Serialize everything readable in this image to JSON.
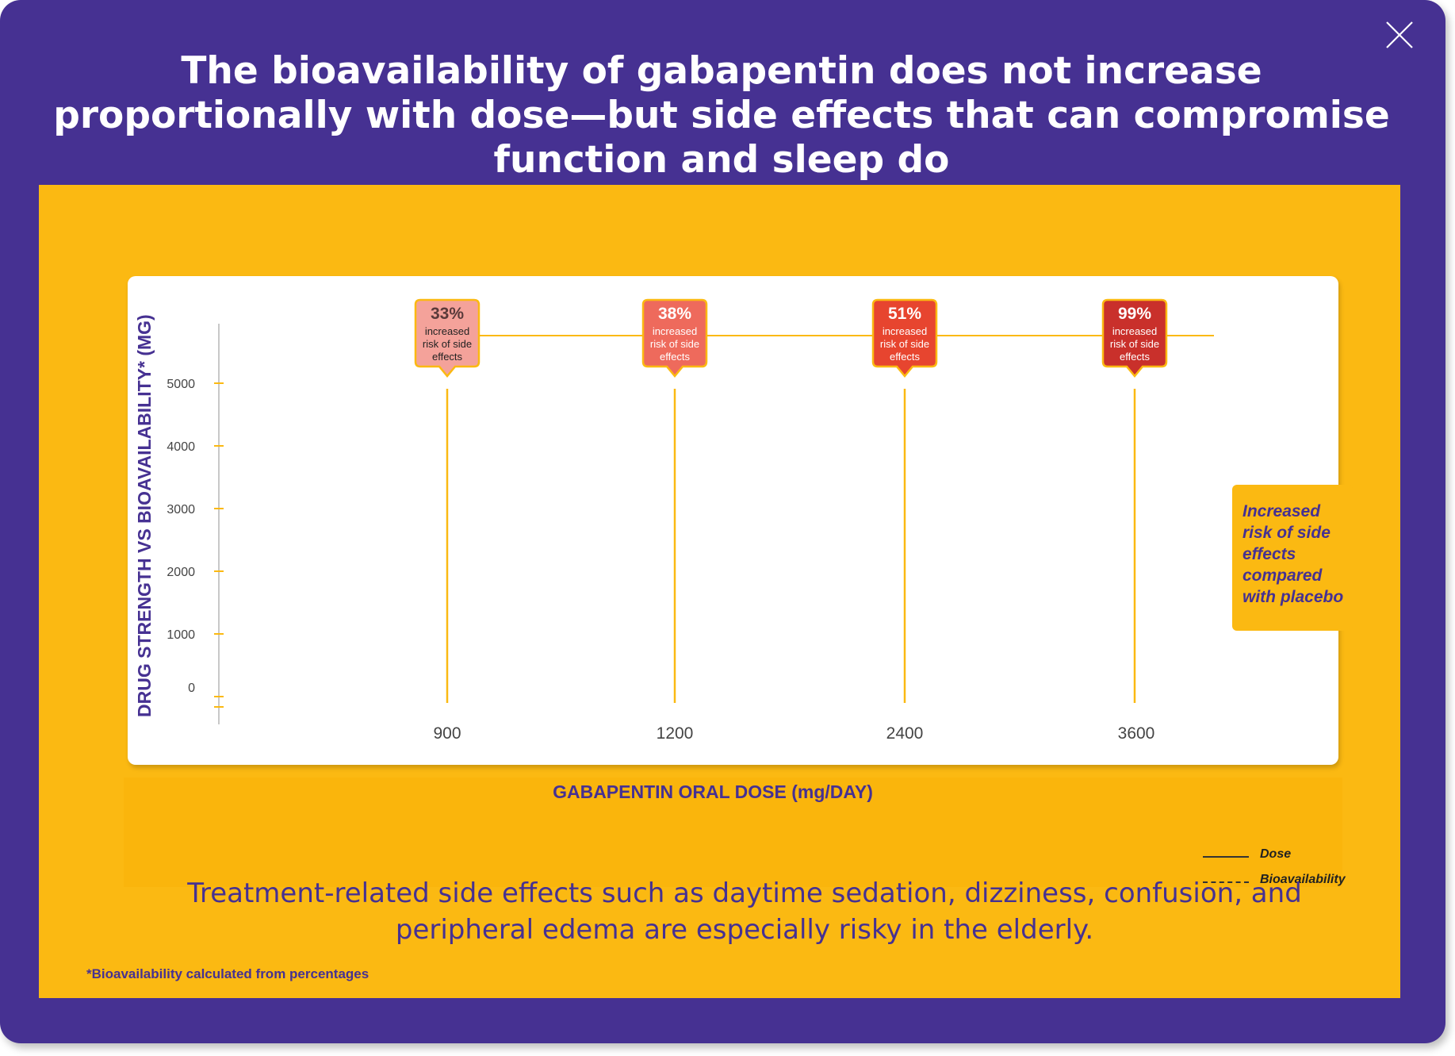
{
  "title": "The bioavailability of gabapentin does not increase proportionally with dose—but side effects that can compromise function and sleep do",
  "close_icon": "close-icon",
  "callout": "Increased risk of side effects compared with placebo",
  "legend": [
    {
      "label": "Dose",
      "style": "solid"
    },
    {
      "label": "Bioavailability",
      "style": "dashed"
    }
  ],
  "bottom_text": "Treatment-related side effects such as daytime sedation, dizziness, confusion, and peripheral edema are especially risky in the elderly.",
  "footnote": "*Bioavailability calculated from percentages",
  "colors": {
    "frame": "#463192",
    "panel": "#fbb912",
    "accent_line": "#fbb912",
    "bubble_33": "#f4a29a",
    "bubble_38": "#ee6a5c",
    "bubble_51": "#e7452f",
    "bubble_99": "#c9302b"
  },
  "chart_data": {
    "type": "bar",
    "xlabel": "GABAPENTIN ORAL DOSE (mg/DAY)",
    "ylabel": "DRUG STRENGTH VS BIOAVAILABILITY* (MG)",
    "categories": [
      "900",
      "1200",
      "2400",
      "3600"
    ],
    "y_ticks": [
      "5000",
      "4000",
      "3000",
      "2000",
      "1000",
      "0"
    ],
    "ylim": [
      0,
      5000
    ],
    "grid": false,
    "legend_position": "bottom-right",
    "annotations": [
      {
        "category": "900",
        "value": "33%",
        "text": "increased risk of side effects"
      },
      {
        "category": "1200",
        "value": "38%",
        "text": "increased risk of side effects"
      },
      {
        "category": "2400",
        "value": "51%",
        "text": "increased risk of side effects"
      },
      {
        "category": "3600",
        "value": "99%",
        "text": "increased risk of side effects"
      }
    ]
  }
}
